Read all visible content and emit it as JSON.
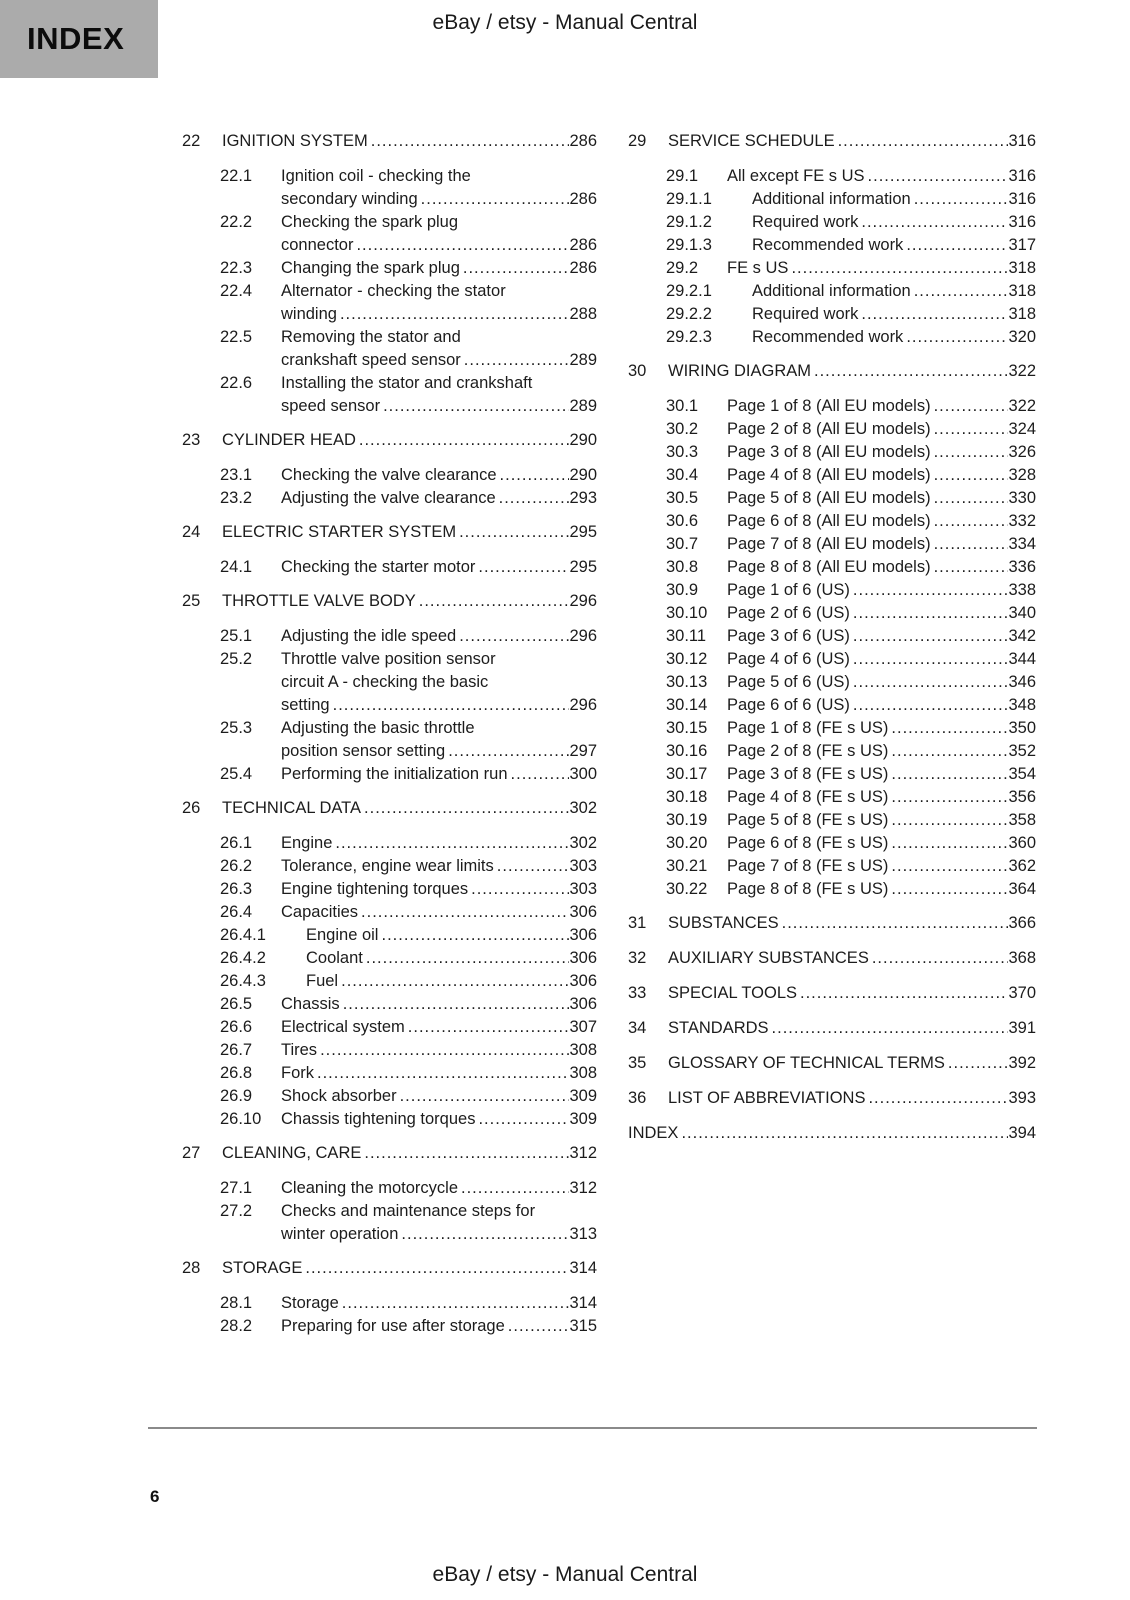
{
  "header": {
    "index_label": "INDEX",
    "title": "eBay / etsy - Manual Central"
  },
  "footer": {
    "page_number": "6",
    "title": "eBay / etsy - Manual Central"
  },
  "colors": {
    "index_tab_bg": "#ababab",
    "text": "#1c1c1c",
    "footer_rule": "#8a8a8a"
  },
  "toc": {
    "columns": [
      {
        "chapters": [
          {
            "num": "22",
            "title": "IGNITION SYSTEM",
            "page": "286",
            "entries": [
              {
                "num": "22.1",
                "lines": [
                  "Ignition coil - checking the",
                  "secondary winding"
                ],
                "page": "286"
              },
              {
                "num": "22.2",
                "lines": [
                  "Checking the spark plug",
                  "connector"
                ],
                "page": "286"
              },
              {
                "num": "22.3",
                "lines": [
                  "Changing the spark plug"
                ],
                "page": "286"
              },
              {
                "num": "22.4",
                "lines": [
                  "Alternator - checking the stator",
                  "winding"
                ],
                "page": "288"
              },
              {
                "num": "22.5",
                "lines": [
                  "Removing the stator and",
                  "crankshaft speed sensor"
                ],
                "page": "289"
              },
              {
                "num": "22.6",
                "lines": [
                  "Installing the stator and crankshaft",
                  "speed sensor"
                ],
                "page": "289"
              }
            ]
          },
          {
            "num": "23",
            "title": "CYLINDER HEAD",
            "page": "290",
            "entries": [
              {
                "num": "23.1",
                "lines": [
                  "Checking the valve clearance"
                ],
                "page": "290"
              },
              {
                "num": "23.2",
                "lines": [
                  "Adjusting the valve clearance"
                ],
                "page": "293"
              }
            ]
          },
          {
            "num": "24",
            "title": "ELECTRIC STARTER SYSTEM",
            "page": "295",
            "entries": [
              {
                "num": "24.1",
                "lines": [
                  "Checking the starter motor"
                ],
                "page": "295"
              }
            ]
          },
          {
            "num": "25",
            "title": "THROTTLE VALVE BODY",
            "page": "296",
            "entries": [
              {
                "num": "25.1",
                "lines": [
                  "Adjusting the idle speed"
                ],
                "page": "296"
              },
              {
                "num": "25.2",
                "lines": [
                  "Throttle valve position sensor",
                  "circuit A - checking the basic",
                  "setting"
                ],
                "page": "296"
              },
              {
                "num": "25.3",
                "lines": [
                  "Adjusting the basic throttle",
                  "position sensor setting"
                ],
                "page": "297"
              },
              {
                "num": "25.4",
                "lines": [
                  "Performing the initialization run"
                ],
                "page": "300"
              }
            ]
          },
          {
            "num": "26",
            "title": "TECHNICAL DATA",
            "page": "302",
            "entries": [
              {
                "num": "26.1",
                "lines": [
                  "Engine"
                ],
                "page": "302"
              },
              {
                "num": "26.2",
                "lines": [
                  "Tolerance, engine wear limits"
                ],
                "page": "303"
              },
              {
                "num": "26.3",
                "lines": [
                  "Engine tightening torques"
                ],
                "page": "303"
              },
              {
                "num": "26.4",
                "lines": [
                  "Capacities"
                ],
                "page": "306"
              },
              {
                "num": "26.4.1",
                "lines": [
                  "Engine oil"
                ],
                "page": "306",
                "level": 2
              },
              {
                "num": "26.4.2",
                "lines": [
                  "Coolant"
                ],
                "page": "306",
                "level": 2
              },
              {
                "num": "26.4.3",
                "lines": [
                  "Fuel"
                ],
                "page": "306",
                "level": 2
              },
              {
                "num": "26.5",
                "lines": [
                  "Chassis"
                ],
                "page": "306"
              },
              {
                "num": "26.6",
                "lines": [
                  "Electrical system"
                ],
                "page": "307"
              },
              {
                "num": "26.7",
                "lines": [
                  "Tires"
                ],
                "page": "308"
              },
              {
                "num": "26.8",
                "lines": [
                  "Fork"
                ],
                "page": "308"
              },
              {
                "num": "26.9",
                "lines": [
                  "Shock absorber"
                ],
                "page": "309"
              },
              {
                "num": "26.10",
                "lines": [
                  "Chassis tightening torques"
                ],
                "page": "309"
              }
            ]
          },
          {
            "num": "27",
            "title": "CLEANING, CARE",
            "page": "312",
            "entries": [
              {
                "num": "27.1",
                "lines": [
                  "Cleaning the motorcycle"
                ],
                "page": "312"
              },
              {
                "num": "27.2",
                "lines": [
                  "Checks and maintenance steps for",
                  "winter operation"
                ],
                "page": "313"
              }
            ]
          },
          {
            "num": "28",
            "title": "STORAGE",
            "page": "314",
            "entries": [
              {
                "num": "28.1",
                "lines": [
                  "Storage"
                ],
                "page": "314"
              },
              {
                "num": "28.2",
                "lines": [
                  "Preparing for use after storage"
                ],
                "page": "315"
              }
            ]
          }
        ]
      },
      {
        "chapters": [
          {
            "num": "29",
            "title": "SERVICE SCHEDULE",
            "page": "316",
            "entries": [
              {
                "num": "29.1",
                "lines": [
                  "All except FE s US"
                ],
                "page": "316"
              },
              {
                "num": "29.1.1",
                "lines": [
                  "Additional information"
                ],
                "page": "316",
                "level": 2
              },
              {
                "num": "29.1.2",
                "lines": [
                  "Required work"
                ],
                "page": "316",
                "level": 2
              },
              {
                "num": "29.1.3",
                "lines": [
                  "Recommended work"
                ],
                "page": "317",
                "level": 2
              },
              {
                "num": "29.2",
                "lines": [
                  "FE s US"
                ],
                "page": "318"
              },
              {
                "num": "29.2.1",
                "lines": [
                  "Additional information"
                ],
                "page": "318",
                "level": 2
              },
              {
                "num": "29.2.2",
                "lines": [
                  "Required work"
                ],
                "page": "318",
                "level": 2
              },
              {
                "num": "29.2.3",
                "lines": [
                  "Recommended work"
                ],
                "page": "320",
                "level": 2
              }
            ]
          },
          {
            "num": "30",
            "title": "WIRING DIAGRAM",
            "page": "322",
            "entries": [
              {
                "num": "30.1",
                "lines": [
                  "Page 1 of 8 (All EU models)"
                ],
                "page": "322"
              },
              {
                "num": "30.2",
                "lines": [
                  "Page 2 of 8 (All EU models)"
                ],
                "page": "324"
              },
              {
                "num": "30.3",
                "lines": [
                  "Page 3 of 8 (All EU models)"
                ],
                "page": "326"
              },
              {
                "num": "30.4",
                "lines": [
                  "Page 4 of 8 (All EU models)"
                ],
                "page": "328"
              },
              {
                "num": "30.5",
                "lines": [
                  "Page 5 of 8 (All EU models)"
                ],
                "page": "330"
              },
              {
                "num": "30.6",
                "lines": [
                  "Page 6 of 8 (All EU models)"
                ],
                "page": "332"
              },
              {
                "num": "30.7",
                "lines": [
                  "Page 7 of 8 (All EU models)"
                ],
                "page": "334"
              },
              {
                "num": "30.8",
                "lines": [
                  "Page 8 of 8 (All EU models)"
                ],
                "page": "336"
              },
              {
                "num": "30.9",
                "lines": [
                  "Page 1 of 6 (US)"
                ],
                "page": "338"
              },
              {
                "num": "30.10",
                "lines": [
                  "Page 2 of 6 (US)"
                ],
                "page": "340"
              },
              {
                "num": "30.11",
                "lines": [
                  "Page 3 of 6 (US)"
                ],
                "page": "342"
              },
              {
                "num": "30.12",
                "lines": [
                  "Page 4 of 6 (US)"
                ],
                "page": "344"
              },
              {
                "num": "30.13",
                "lines": [
                  "Page 5 of 6 (US)"
                ],
                "page": "346"
              },
              {
                "num": "30.14",
                "lines": [
                  "Page 6 of 6 (US)"
                ],
                "page": "348"
              },
              {
                "num": "30.15",
                "lines": [
                  "Page 1 of 8 (FE s US)"
                ],
                "page": "350"
              },
              {
                "num": "30.16",
                "lines": [
                  "Page 2 of 8 (FE s US)"
                ],
                "page": "352"
              },
              {
                "num": "30.17",
                "lines": [
                  "Page 3 of 8 (FE s US)"
                ],
                "page": "354"
              },
              {
                "num": "30.18",
                "lines": [
                  "Page 4 of 8 (FE s US)"
                ],
                "page": "356"
              },
              {
                "num": "30.19",
                "lines": [
                  "Page 5 of 8 (FE s US)"
                ],
                "page": "358"
              },
              {
                "num": "30.20",
                "lines": [
                  "Page 6 of 8 (FE s US)"
                ],
                "page": "360"
              },
              {
                "num": "30.21",
                "lines": [
                  "Page 7 of 8 (FE s US)"
                ],
                "page": "362"
              },
              {
                "num": "30.22",
                "lines": [
                  "Page 8 of 8 (FE s US)"
                ],
                "page": "364"
              }
            ]
          },
          {
            "num": "31",
            "title": "SUBSTANCES",
            "page": "366",
            "entries": []
          },
          {
            "num": "32",
            "title": "AUXILIARY SUBSTANCES",
            "page": "368",
            "entries": []
          },
          {
            "num": "33",
            "title": "SPECIAL TOOLS",
            "page": "370",
            "entries": []
          },
          {
            "num": "34",
            "title": "STANDARDS",
            "page": "391",
            "entries": []
          },
          {
            "num": "35",
            "title": "GLOSSARY OF TECHNICAL TERMS",
            "page": "392",
            "entries": []
          },
          {
            "num": "36",
            "title": "LIST OF ABBREVIATIONS",
            "page": "393",
            "entries": []
          },
          {
            "num": "",
            "title": "INDEX",
            "page": "394",
            "entries": []
          }
        ]
      }
    ]
  }
}
